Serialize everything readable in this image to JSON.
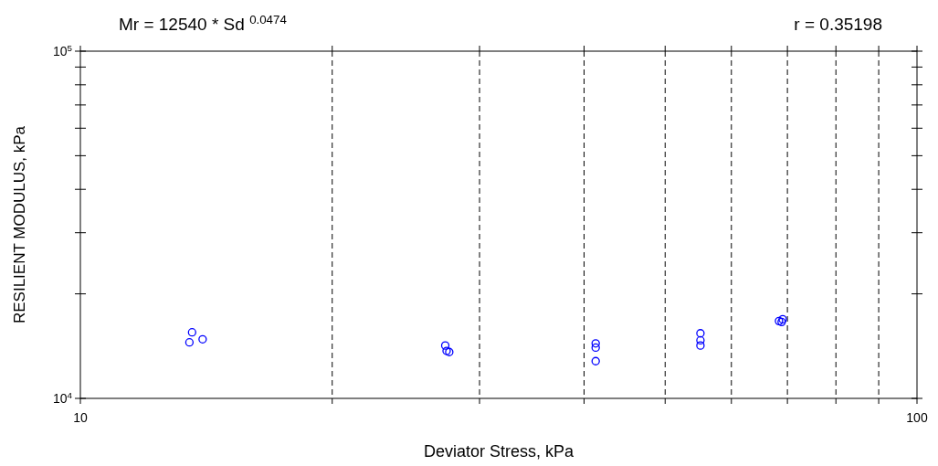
{
  "chart_data": {
    "type": "scatter",
    "title": "Mr = 12540 * Sd $^{0.0474}$",
    "annotations": [
      "r = 0.35198"
    ],
    "xlabel": "Deviator Stress, kPa",
    "ylabel": "RESILIENT MODULUS, kPa",
    "log": "xy",
    "grid": "x",
    "marker": "circle",
    "xlim": [
      10,
      100
    ],
    "ylim": [
      10000,
      100000
    ],
    "xticks": [
      10,
      {
        "value": 20,
        "label": null
      },
      {
        "value": 30,
        "label": null
      },
      {
        "value": 40,
        "label": null
      },
      {
        "value": 50,
        "label": null
      },
      {
        "value": 60,
        "label": null
      },
      {
        "value": 70,
        "label": null
      },
      {
        "value": 80,
        "label": null
      },
      {
        "value": 90,
        "label": null
      },
      100
    ],
    "yticks": [
      {
        "value": 10000,
        "label": "10$^{4}$"
      },
      {
        "value": 20000,
        "label": null
      },
      {
        "value": 30000,
        "label": null
      },
      {
        "value": 40000,
        "label": null
      },
      {
        "value": 50000,
        "label": null
      },
      {
        "value": 60000,
        "label": null
      },
      {
        "value": 70000,
        "label": null
      },
      {
        "value": 80000,
        "label": null
      },
      {
        "value": 90000,
        "label": null
      },
      {
        "value": 100000,
        "label": "10$^{5}$"
      }
    ],
    "series": [
      {
        "color": "#0000ff",
        "x": [
          13.6,
          13.5,
          14.0,
          27.3,
          27.4,
          27.6,
          41.3,
          41.3,
          41.3,
          55.1,
          55.1,
          55.1,
          68.4,
          68.9,
          69.1
        ],
        "values": [
          15500,
          14500,
          14800,
          14200,
          13700,
          13600,
          14400,
          14000,
          12800,
          15400,
          14700,
          14200,
          16700,
          16600,
          16900
        ]
      }
    ]
  }
}
